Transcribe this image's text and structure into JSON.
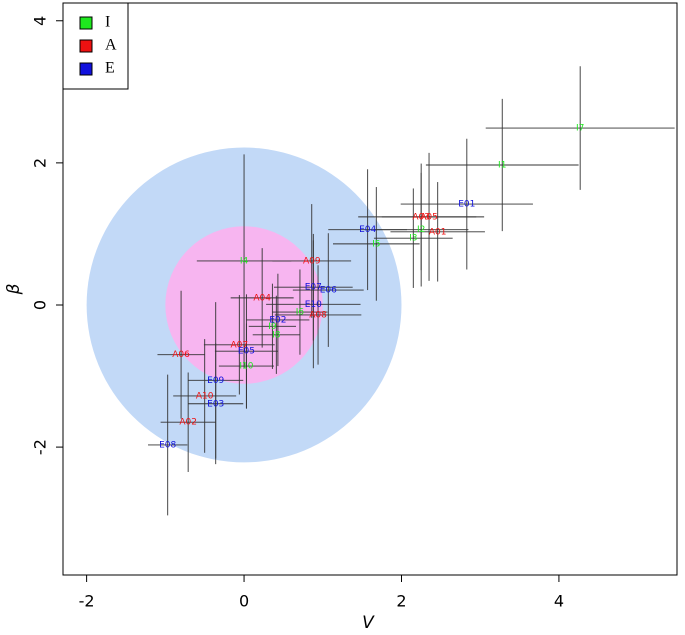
{
  "chart_data": {
    "type": "scatter",
    "x_label": "V",
    "y_label": "β",
    "xlim": [
      -2.3,
      5.5
    ],
    "ylim": [
      -3.8,
      4.25
    ],
    "xticks": [
      -2,
      0,
      2,
      4
    ],
    "yticks": [
      -2,
      0,
      2,
      4
    ],
    "legend": "top-left",
    "circles": [
      {
        "radius": 2,
        "color": "#c2d9f7"
      },
      {
        "radius": 1,
        "color": "#f7b5f0"
      }
    ],
    "series": [
      {
        "name": "I",
        "color": "#1ee81e",
        "labels": [
          "I1",
          "I2",
          "I3",
          "I4",
          "I5",
          "I6",
          "I7",
          "I8",
          "I9",
          "I10"
        ],
        "x": [
          3.28,
          2.25,
          2.15,
          0,
          1.68,
          0.71,
          4.27,
          0.41,
          0.36,
          0.03
        ],
        "values": [
          1.97,
          1.06,
          0.94,
          0.62,
          0.86,
          -0.1,
          2.49,
          -0.42,
          -0.3,
          -0.86
        ],
        "xerr": [
          0.97,
          0.6,
          0.5,
          0.6,
          0.55,
          0.35,
          1.2,
          0.3,
          0.3,
          0.35
        ],
        "yerr": [
          0.93,
          0.8,
          0.7,
          1.5,
          0.8,
          0.6,
          0.87,
          0.55,
          0.6,
          0.6
        ]
      },
      {
        "name": "A",
        "color": "#ee1111",
        "labels": [
          "A01",
          "A02",
          "A03",
          "A04",
          "A05",
          "A06",
          "A07",
          "A08",
          "A09",
          "A10"
        ],
        "x": [
          2.46,
          -0.71,
          2.25,
          0.23,
          2.35,
          -0.8,
          -0.06,
          0.94,
          0.86,
          -0.5
        ],
        "values": [
          1.03,
          -1.65,
          1.24,
          0.1,
          1.24,
          -0.7,
          -0.56,
          -0.14,
          0.62,
          -1.28
        ],
        "xerr": [
          0.6,
          0.35,
          0.8,
          0.4,
          0.6,
          0.3,
          0.45,
          0.55,
          0.5,
          0.4
        ],
        "yerr": [
          0.7,
          0.7,
          0.75,
          0.7,
          0.9,
          0.9,
          0.7,
          0.7,
          0.8,
          0.8
        ]
      },
      {
        "name": "E",
        "color": "#1111dd",
        "labels": [
          "E01",
          "E02",
          "E03",
          "E04",
          "E05",
          "E06",
          "E07",
          "E08",
          "E09",
          "E10"
        ],
        "x": [
          2.83,
          0.43,
          -0.36,
          1.57,
          0.03,
          1.07,
          0.88,
          -0.97,
          -0.36,
          0.88
        ],
        "values": [
          1.42,
          -0.21,
          -1.39,
          1.06,
          -0.65,
          0.21,
          0.25,
          -1.97,
          -1.06,
          0.01
        ],
        "xerr": [
          0.84,
          0.4,
          0.35,
          0.5,
          0.4,
          0.45,
          0.5,
          0.25,
          0.35,
          0.6
        ],
        "yerr": [
          0.92,
          0.65,
          0.85,
          0.85,
          0.8,
          0.8,
          0.75,
          0.99,
          1.1,
          0.9
        ]
      }
    ]
  }
}
